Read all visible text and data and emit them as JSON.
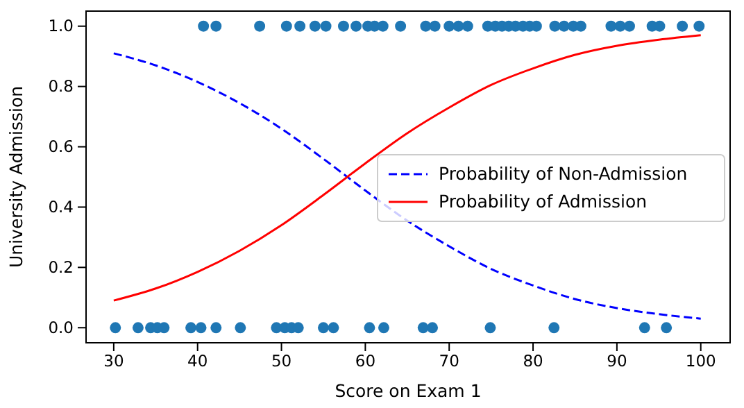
{
  "chart_data": {
    "type": "scatter",
    "xlabel": "Score on Exam 1",
    "ylabel": "University Admission",
    "xlim": [
      26.7,
      103.5
    ],
    "ylim": [
      -0.05,
      1.05
    ],
    "xticks": [
      30,
      40,
      50,
      60,
      70,
      80,
      90,
      100
    ],
    "yticks": [
      {
        "value": 0,
        "label": "0.0"
      },
      {
        "value": 0.2,
        "label": "0.2"
      },
      {
        "value": 0.4,
        "label": "0.4"
      },
      {
        "value": 0.6,
        "label": "0.6"
      },
      {
        "value": 0.8,
        "label": "0.8"
      },
      {
        "value": 1,
        "label": "1.0"
      }
    ],
    "legend": "right",
    "grid": false,
    "series": [
      {
        "color": "#1f77b4",
        "marker": "circle",
        "x": [
          40.7,
          42.2,
          47.4,
          50.6,
          52.2,
          54.0,
          55.3,
          57.4,
          58.9,
          60.3,
          61.1,
          62.1,
          64.2,
          67.2,
          68.3,
          70.0,
          71.1,
          72.2,
          74.6,
          75.5,
          76.3,
          77.1,
          77.9,
          78.8,
          79.6,
          80.4,
          82.6,
          83.7,
          84.8,
          85.7,
          89.3,
          90.4,
          91.5,
          94.2,
          95.1,
          97.8,
          99.8,
          30.2,
          32.9,
          34.4,
          35.2,
          36.0,
          39.2,
          40.4,
          42.2,
          45.1,
          49.4,
          50.4,
          51.2,
          52.0,
          55.0,
          56.2,
          60.5,
          62.2,
          66.9,
          68.0,
          74.9,
          82.5,
          93.3,
          95.9
        ],
        "values": [
          1,
          1,
          1,
          1,
          1,
          1,
          1,
          1,
          1,
          1,
          1,
          1,
          1,
          1,
          1,
          1,
          1,
          1,
          1,
          1,
          1,
          1,
          1,
          1,
          1,
          1,
          1,
          1,
          1,
          1,
          1,
          1,
          1,
          1,
          1,
          1,
          1,
          0,
          0,
          0,
          0,
          0,
          0,
          0,
          0,
          0,
          0,
          0,
          0,
          0,
          0,
          0,
          0,
          0,
          0,
          0,
          0,
          0,
          0,
          0
        ]
      },
      {
        "type": "line",
        "name": "Probability of Non-Admission",
        "color": "#0000ff",
        "line_style": "dashed",
        "marker": "none",
        "x": [
          30,
          35,
          40,
          45,
          50,
          55,
          60,
          65,
          70,
          75,
          80,
          85,
          90,
          95,
          100
        ],
        "values": [
          0.91,
          0.87,
          0.815,
          0.745,
          0.66,
          0.56,
          0.455,
          0.355,
          0.27,
          0.195,
          0.14,
          0.095,
          0.065,
          0.045,
          0.03
        ]
      },
      {
        "type": "line",
        "name": "Probability of Admission",
        "color": "#ff0000",
        "line_style": "solid",
        "marker": "none",
        "x": [
          30,
          35,
          40,
          45,
          50,
          55,
          60,
          65,
          70,
          75,
          80,
          85,
          90,
          95,
          100
        ],
        "values": [
          0.09,
          0.13,
          0.185,
          0.255,
          0.34,
          0.44,
          0.545,
          0.645,
          0.73,
          0.805,
          0.86,
          0.905,
          0.935,
          0.955,
          0.97
        ]
      }
    ]
  }
}
